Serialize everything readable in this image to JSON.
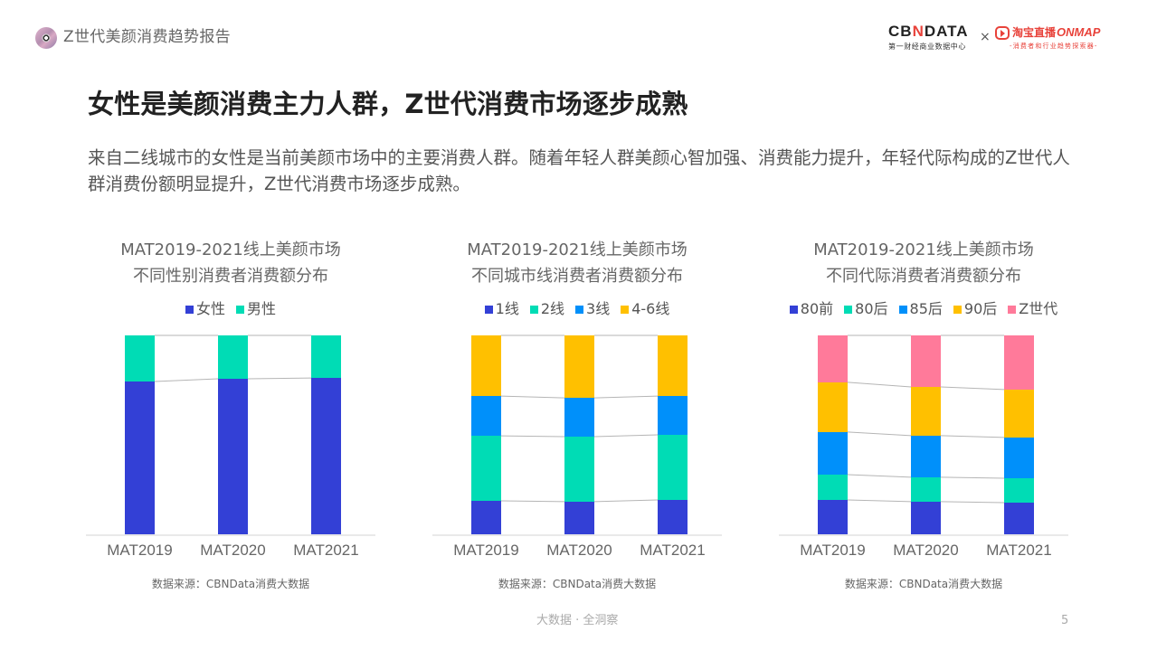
{
  "header": {
    "report_title": "Z世代美颜消费趋势报告",
    "logo_cbndata": {
      "word_left": "CB",
      "word_n": "N",
      "word_right": "DATA",
      "subtitle": "第一财经商业数据中心"
    },
    "logo_separator": "×",
    "logo_taobao": {
      "cn": "淘宝直播",
      "en": "ONMAP",
      "subtitle": "-消费者和行业趋势探索器-"
    }
  },
  "headline": "女性是美颜消费主力人群，Z世代消费市场逐步成熟",
  "intro": "来自二线城市的女性是当前美颜市场中的主要消费人群。随着年轻人群美颜心智加强、消费能力提升，年轻代际构成的Z世代人群消费份额明显提升，Z世代消费市场逐步成熟。",
  "colors": {
    "navy": "#3340d6",
    "teal": "#00dcb5",
    "blue": "#0090fa",
    "yellow": "#ffc000",
    "pink": "#ff7a9a"
  },
  "chart_data": [
    {
      "type": "bar",
      "stacked": true,
      "normalized": true,
      "title": "MAT2019-2021线上美颜市场 不同性别消费者消费额分布",
      "title_line1": "MAT2019-2021线上美颜市场",
      "title_line2": "不同性别消费者消费额分布",
      "categories": [
        "MAT2019",
        "MAT2020",
        "MAT2021"
      ],
      "series": [
        {
          "name": "女性",
          "color": "#3340d6",
          "values": [
            76.8,
            78.2,
            78.6
          ]
        },
        {
          "name": "男性",
          "color": "#00dcb5",
          "values": [
            23.2,
            21.8,
            21.4
          ]
        }
      ],
      "ylim": [
        0,
        100
      ],
      "legend_position": "top",
      "grid": false,
      "source": "数据来源：CBNData消费大数据"
    },
    {
      "type": "bar",
      "stacked": true,
      "normalized": true,
      "title": "MAT2019-2021线上美颜市场 不同城市线消费者消费额分布",
      "title_line1": "MAT2019-2021线上美颜市场",
      "title_line2": "不同城市线消费者消费额分布",
      "categories": [
        "MAT2019",
        "MAT2020",
        "MAT2021"
      ],
      "series": [
        {
          "name": "1线",
          "color": "#3340d6",
          "values": [
            16.8,
            16.4,
            17.3
          ]
        },
        {
          "name": "2线",
          "color": "#00dcb5",
          "values": [
            32.7,
            32.7,
            32.7
          ]
        },
        {
          "name": "3线",
          "color": "#0090fa",
          "values": [
            20.0,
            19.5,
            19.5
          ]
        },
        {
          "name": "4-6线",
          "color": "#ffc000",
          "values": [
            30.5,
            31.4,
            30.5
          ]
        }
      ],
      "ylim": [
        0,
        100
      ],
      "legend_position": "top",
      "grid": false,
      "source": "数据来源：CBNData消费大数据"
    },
    {
      "type": "bar",
      "stacked": true,
      "normalized": true,
      "title": "MAT2019-2021线上美颜市场 不同代际消费者消费额分布",
      "title_line1": "MAT2019-2021线上美颜市场",
      "title_line2": "不同代际消费者消费额分布",
      "categories": [
        "MAT2019",
        "MAT2020",
        "MAT2021"
      ],
      "series": [
        {
          "name": "80前",
          "color": "#3340d6",
          "values": [
            17.3,
            16.4,
            15.9
          ]
        },
        {
          "name": "80后",
          "color": "#00dcb5",
          "values": [
            12.7,
            12.3,
            12.3
          ]
        },
        {
          "name": "85后",
          "color": "#0090fa",
          "values": [
            21.4,
            20.9,
            20.5
          ]
        },
        {
          "name": "90后",
          "color": "#ffc000",
          "values": [
            25.0,
            24.5,
            24.1
          ]
        },
        {
          "name": "Z世代",
          "color": "#ff7a9a",
          "values": [
            23.6,
            25.9,
            27.2
          ]
        }
      ],
      "ylim": [
        0,
        100
      ],
      "legend_position": "top",
      "grid": false,
      "source": "数据来源：CBNData消费大数据"
    }
  ],
  "footer": {
    "slogan": "大数据 · 全洞察",
    "page_number": "5"
  }
}
